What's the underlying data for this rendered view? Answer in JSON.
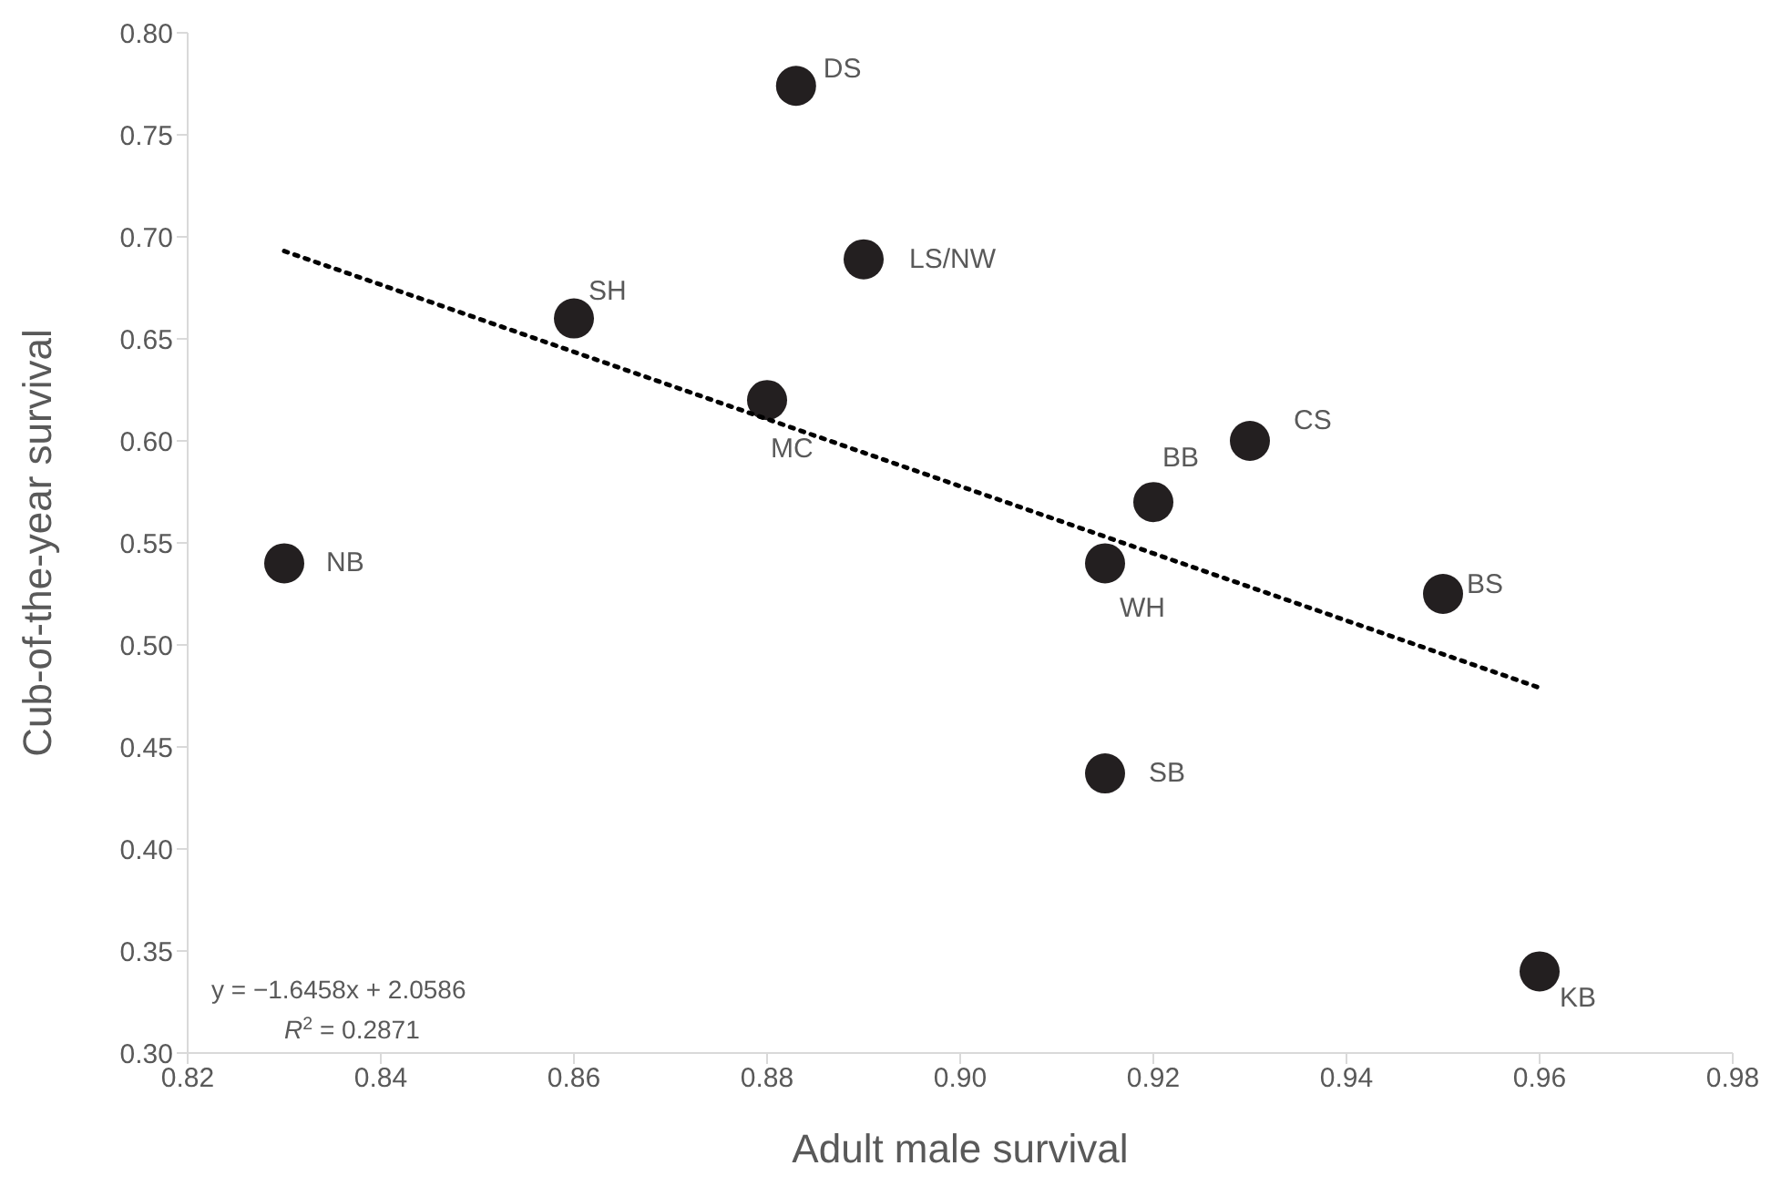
{
  "chart_data": {
    "type": "scatter",
    "xlabel": "Adult male survival",
    "ylabel": "Cub-of-the-year survival",
    "xlim": [
      0.82,
      0.98
    ],
    "xticks": [
      {
        "value": 0.82,
        "label": "0.82"
      },
      {
        "value": 0.84,
        "label": "0.84"
      },
      {
        "value": 0.86,
        "label": "0.86"
      },
      {
        "value": 0.88,
        "label": "0.88"
      },
      {
        "value": 0.9,
        "label": "0.90"
      },
      {
        "value": 0.92,
        "label": "0.92"
      },
      {
        "value": 0.94,
        "label": "0.94"
      },
      {
        "value": 0.96,
        "label": "0.96"
      },
      {
        "value": 0.98,
        "label": "0.98"
      }
    ],
    "ylim": [
      0.3,
      0.8
    ],
    "yticks": [
      {
        "value": 0.3,
        "label": "0.30"
      },
      {
        "value": 0.35,
        "label": "0.35"
      },
      {
        "value": 0.4,
        "label": "0.40"
      },
      {
        "value": 0.45,
        "label": "0.45"
      },
      {
        "value": 0.5,
        "label": "0.50"
      },
      {
        "value": 0.55,
        "label": "0.55"
      },
      {
        "value": 0.6,
        "label": "0.60"
      },
      {
        "value": 0.65,
        "label": "0.65"
      },
      {
        "value": 0.7,
        "label": "0.70"
      },
      {
        "value": 0.75,
        "label": "0.75"
      },
      {
        "value": 0.8,
        "label": "0.80"
      }
    ],
    "marker": "circle",
    "series": [
      {
        "type": "scatter",
        "color": "#231f20",
        "x": [
          0.883,
          0.89,
          0.86,
          0.88,
          0.83,
          0.93,
          0.92,
          0.915,
          0.95,
          0.915,
          0.96
        ],
        "values": [
          0.774,
          0.689,
          0.66,
          0.62,
          0.54,
          0.6,
          0.57,
          0.54,
          0.525,
          0.437,
          0.34
        ]
      },
      {
        "type": "line",
        "color": "#000000",
        "line_style": "dotted",
        "marker": "none",
        "x": [
          0.83,
          0.96
        ],
        "values": [
          0.693,
          0.479
        ]
      }
    ],
    "annotations": [
      {
        "text": "DS",
        "x": 0.883,
        "y": 0.774
      },
      {
        "text": "LS/NW",
        "x": 0.89,
        "y": 0.689
      },
      {
        "text": "SH",
        "x": 0.86,
        "y": 0.66
      },
      {
        "text": "MC",
        "x": 0.88,
        "y": 0.62
      },
      {
        "text": "NB",
        "x": 0.83,
        "y": 0.54
      },
      {
        "text": "CS",
        "x": 0.93,
        "y": 0.6
      },
      {
        "text": "BB",
        "x": 0.92,
        "y": 0.57
      },
      {
        "text": "WH",
        "x": 0.915,
        "y": 0.54
      },
      {
        "text": "BS",
        "x": 0.95,
        "y": 0.525
      },
      {
        "text": "SB",
        "x": 0.915,
        "y": 0.437
      },
      {
        "text": "KB",
        "x": 0.96,
        "y": 0.34
      },
      "y = −1.6458x + 2.0586",
      "R$^{2}$ = 0.2871"
    ]
  }
}
